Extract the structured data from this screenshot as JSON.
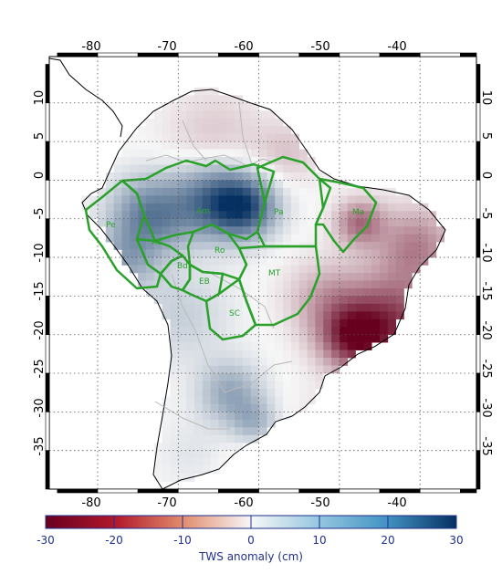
{
  "map": {
    "lon_ticks": [
      "-80",
      "-70",
      "-60",
      "-50",
      "-40"
    ],
    "lat_ticks": [
      "10",
      "5",
      "0",
      "-5",
      "-10",
      "-15",
      "-20",
      "-25",
      "-30",
      "-35"
    ],
    "lon_range": [
      -86,
      -33
    ],
    "lat_range": [
      -40,
      16
    ]
  },
  "regions": [
    {
      "id": "Pe",
      "label": "Pe"
    },
    {
      "id": "Am",
      "label": "Am"
    },
    {
      "id": "Ac",
      "label": "Ac"
    },
    {
      "id": "Pa",
      "label": "Pa"
    },
    {
      "id": "Ma",
      "label": "Ma"
    },
    {
      "id": "Ro",
      "label": "Ro"
    },
    {
      "id": "Bd",
      "label": "Bd"
    },
    {
      "id": "EB",
      "label": "EB"
    },
    {
      "id": "MT",
      "label": "MT"
    },
    {
      "id": "SC",
      "label": "SC"
    }
  ],
  "colorbar": {
    "ticks": [
      "-30",
      "-20",
      "-10",
      "0",
      "10",
      "20",
      "30"
    ],
    "range": [
      -30,
      30
    ],
    "label": "TWS anomaly (cm)",
    "colors": {
      "low": "#67001f",
      "mid": "#f7f7f7",
      "high": "#053061"
    }
  },
  "colors": {
    "region_outline": "#2aa12a",
    "coast": "#000000",
    "borders": "#b0b0b0",
    "grid": "#444444"
  }
}
